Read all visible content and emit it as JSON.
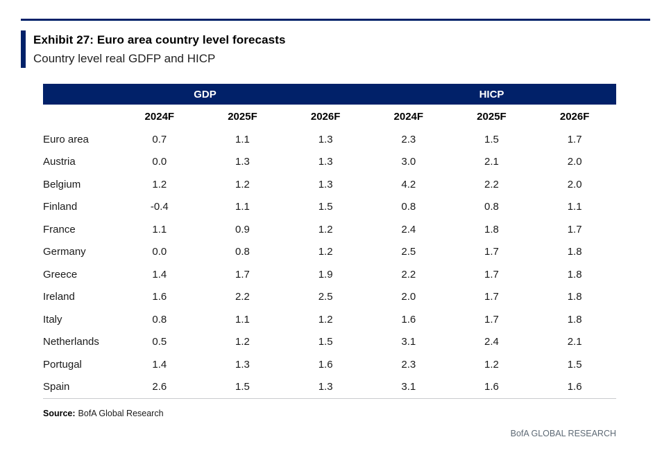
{
  "exhibit": {
    "title": "Exhibit 27: Euro area country level forecasts",
    "subtitle": "Country level real GDFP and HICP"
  },
  "table": {
    "group_headers": [
      "GDP",
      "HICP"
    ],
    "column_headers": [
      "2024F",
      "2025F",
      "2026F",
      "2024F",
      "2025F",
      "2026F"
    ],
    "rows": [
      {
        "label": "Euro area",
        "values": [
          "0.7",
          "1.1",
          "1.3",
          "2.3",
          "1.5",
          "1.7"
        ]
      },
      {
        "label": "Austria",
        "values": [
          "0.0",
          "1.3",
          "1.3",
          "3.0",
          "2.1",
          "2.0"
        ]
      },
      {
        "label": "Belgium",
        "values": [
          "1.2",
          "1.2",
          "1.3",
          "4.2",
          "2.2",
          "2.0"
        ]
      },
      {
        "label": "Finland",
        "values": [
          "-0.4",
          "1.1",
          "1.5",
          "0.8",
          "0.8",
          "1.1"
        ]
      },
      {
        "label": "France",
        "values": [
          "1.1",
          "0.9",
          "1.2",
          "2.4",
          "1.8",
          "1.7"
        ]
      },
      {
        "label": "Germany",
        "values": [
          "0.0",
          "0.8",
          "1.2",
          "2.5",
          "1.7",
          "1.8"
        ]
      },
      {
        "label": "Greece",
        "values": [
          "1.4",
          "1.7",
          "1.9",
          "2.2",
          "1.7",
          "1.8"
        ]
      },
      {
        "label": "Ireland",
        "values": [
          "1.6",
          "2.2",
          "2.5",
          "2.0",
          "1.7",
          "1.8"
        ]
      },
      {
        "label": "Italy",
        "values": [
          "0.8",
          "1.1",
          "1.2",
          "1.6",
          "1.7",
          "1.8"
        ]
      },
      {
        "label": "Netherlands",
        "values": [
          "0.5",
          "1.2",
          "1.5",
          "3.1",
          "2.4",
          "2.1"
        ]
      },
      {
        "label": "Portugal",
        "values": [
          "1.4",
          "1.3",
          "1.6",
          "2.3",
          "1.2",
          "1.5"
        ]
      },
      {
        "label": "Spain",
        "values": [
          "2.6",
          "1.5",
          "1.3",
          "3.1",
          "1.6",
          "1.6"
        ]
      }
    ]
  },
  "source": {
    "label": "Source:",
    "text": "BofA Global Research"
  },
  "footer": {
    "text": "BofA GLOBAL RESEARCH"
  },
  "colors": {
    "brand_navy": "#012169",
    "footer_gray": "#5e6a75",
    "rule_gray": "#c9cbcd"
  }
}
